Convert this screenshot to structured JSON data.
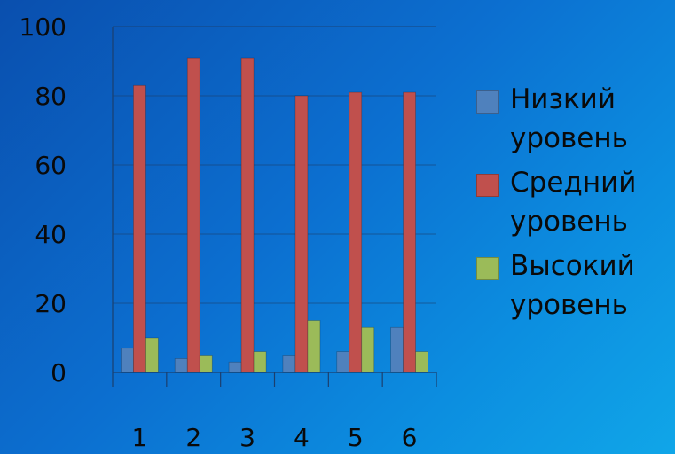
{
  "chart_data": {
    "type": "bar",
    "title": "",
    "xlabel": "",
    "ylabel": "",
    "categories": [
      "1",
      "2",
      "3",
      "4",
      "5",
      "6"
    ],
    "ylim": [
      0,
      100
    ],
    "yticks": [
      "0",
      "20",
      "40",
      "60",
      "80",
      "100"
    ],
    "grid": true,
    "legend_position": "right",
    "series": [
      {
        "name": "Низкий уровень",
        "color": "#4f81bd",
        "values": [
          7,
          4,
          3,
          5,
          6,
          13
        ]
      },
      {
        "name": "Средний уровень",
        "color": "#c0504d",
        "values": [
          83,
          91,
          91,
          80,
          81,
          81
        ]
      },
      {
        "name": "Высокий уровень",
        "color": "#9bbb59",
        "values": [
          10,
          5,
          6,
          15,
          13,
          6
        ]
      }
    ]
  }
}
